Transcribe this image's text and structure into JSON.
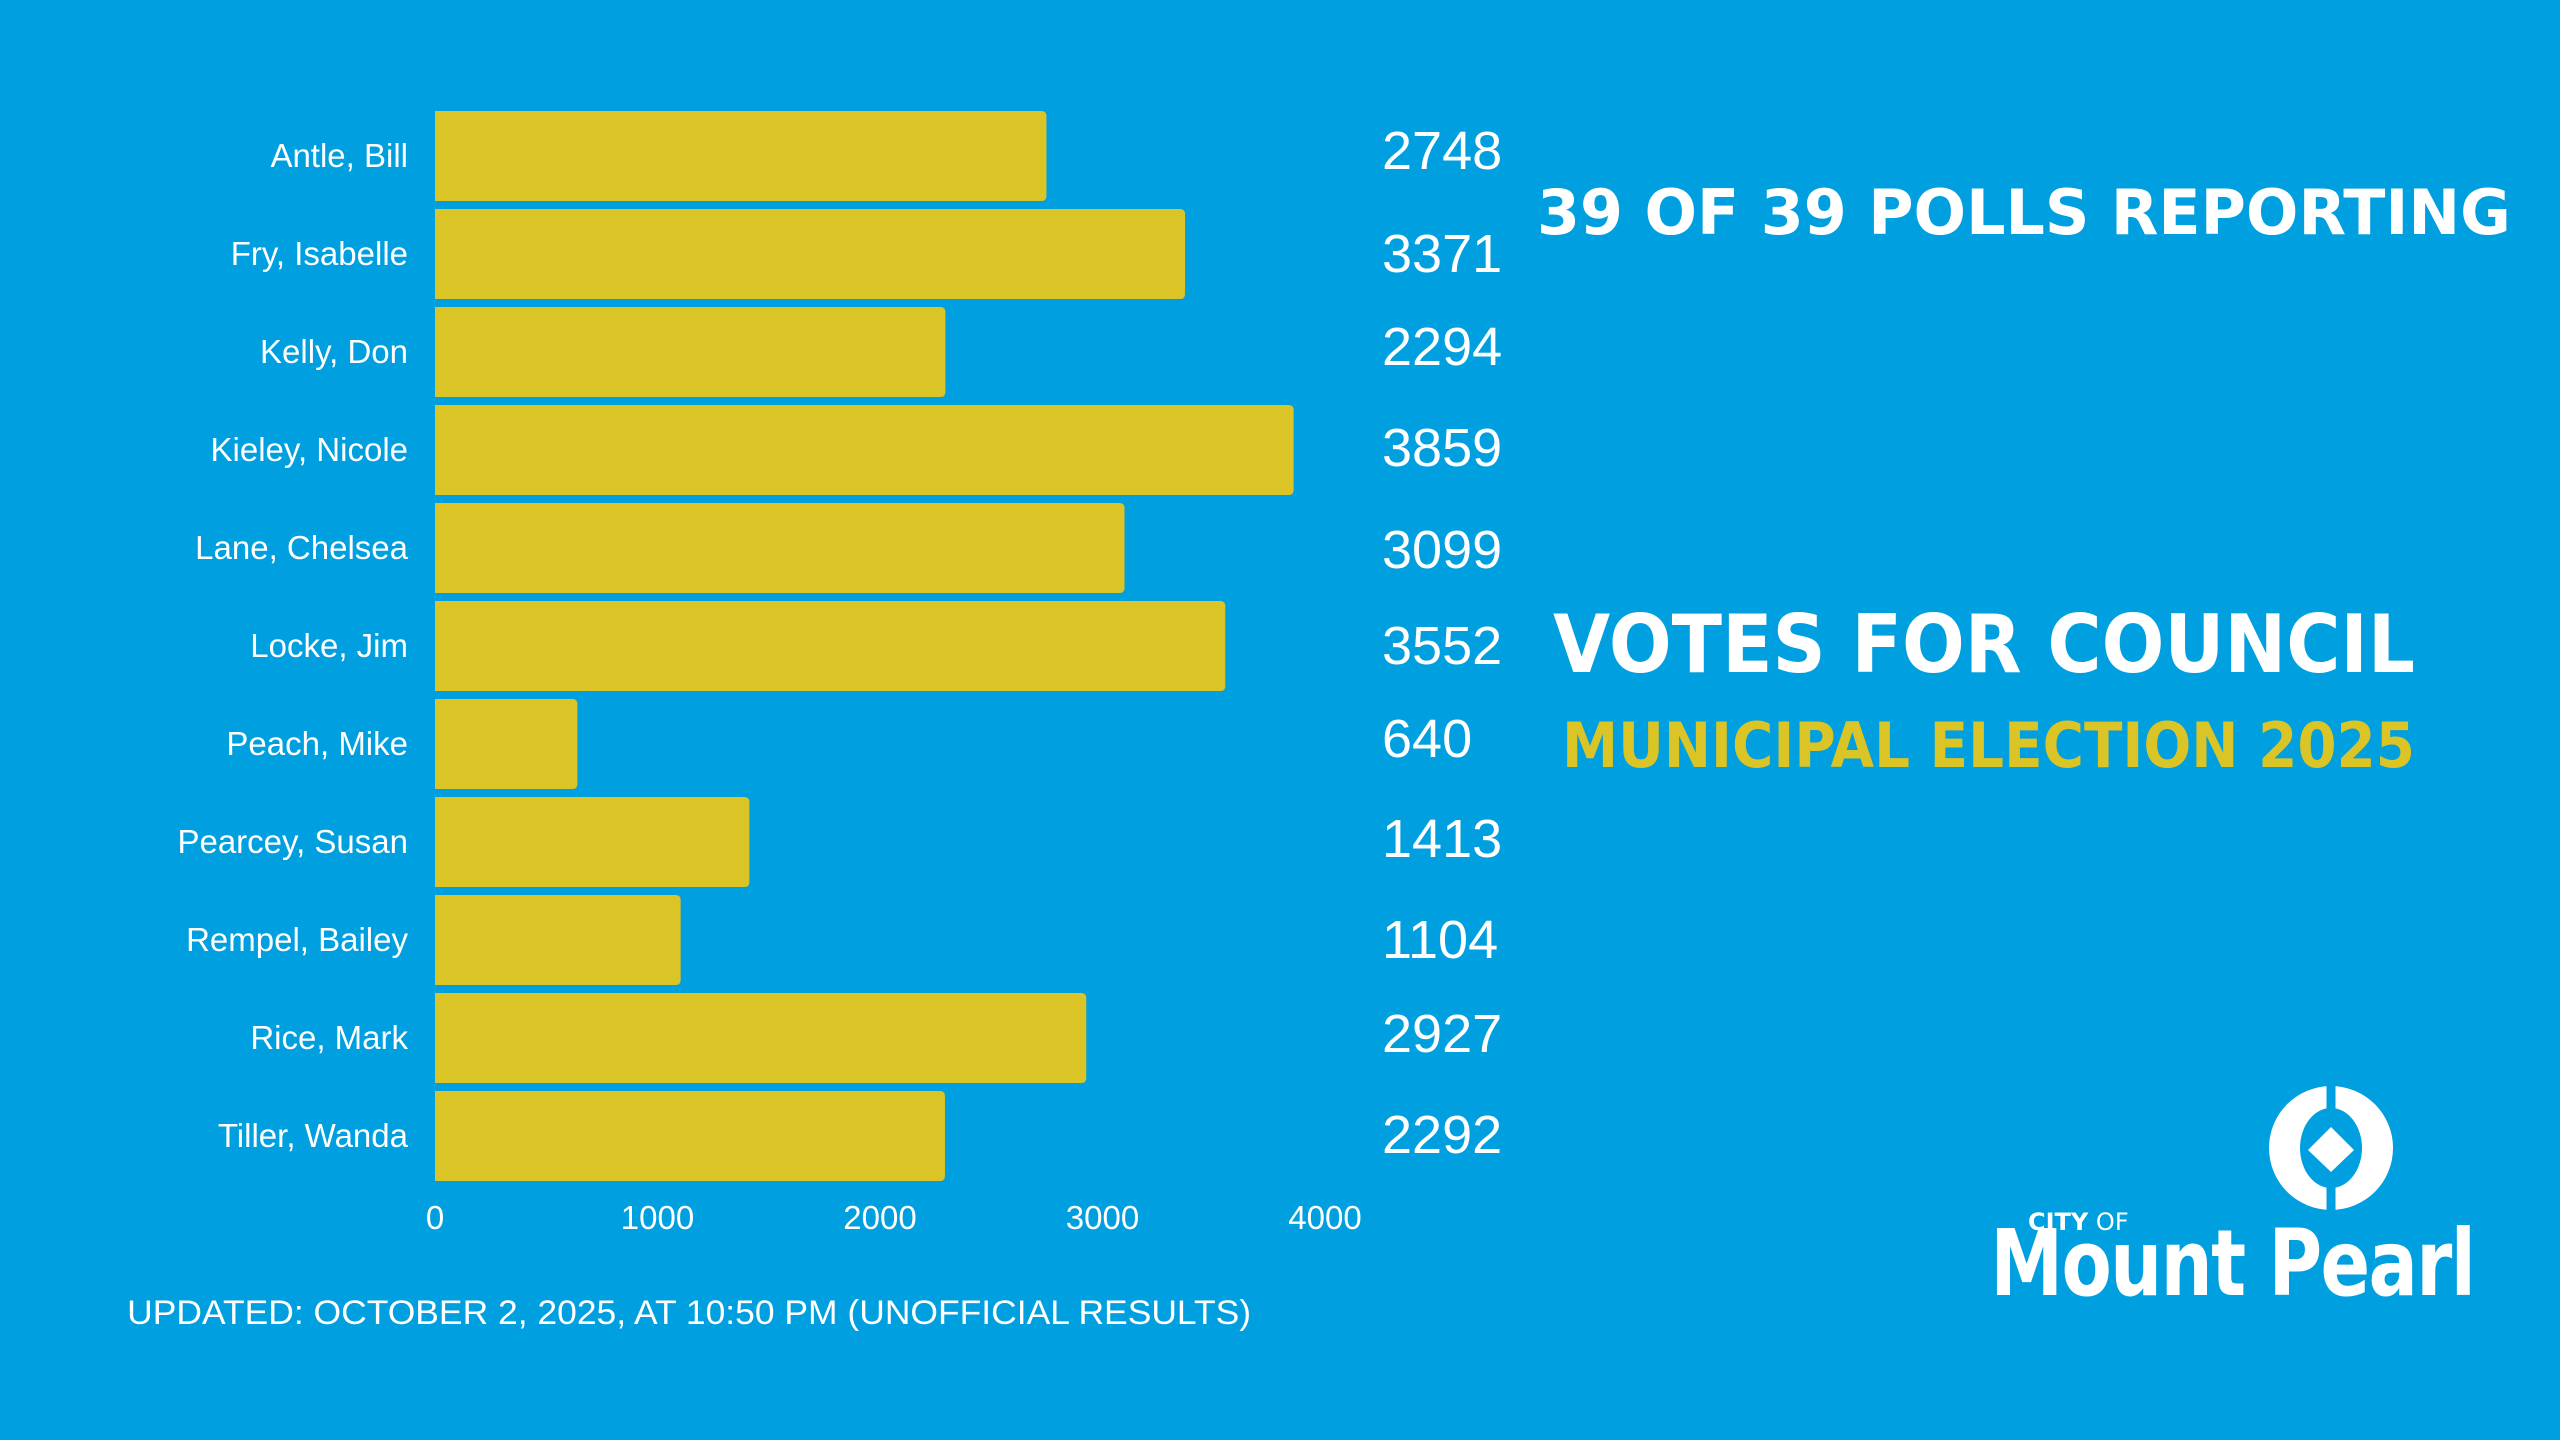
{
  "header": {
    "polls_reporting": "39 OF 39 POLLS REPORTING",
    "title": "VOTES FOR COUNCIL",
    "subtitle": "MUNICIPAL ELECTION 2025"
  },
  "footer": {
    "updated": "UPDATED: OCTOBER 2, 2025, AT 10:50 PM (UNOFFICIAL RESULTS)"
  },
  "logo": {
    "icon": "city-emblem-icon",
    "city_of_bold": "CITY",
    "city_of_light": " OF",
    "name": "Mount Pearl"
  },
  "colors": {
    "background": "#009FDF",
    "bar": "#DBC425",
    "text": "#FFFFFF",
    "accent": "#DBC425"
  },
  "chart_data": {
    "type": "bar",
    "orientation": "horizontal",
    "title": "VOTES FOR COUNCIL",
    "subtitle": "MUNICIPAL ELECTION 2025",
    "xlabel": "",
    "ylabel": "",
    "categories": [
      "Antle, Bill",
      "Fry, Isabelle",
      "Kelly, Don",
      "Kieley, Nicole",
      "Lane, Chelsea",
      "Locke, Jim",
      "Peach, Mike",
      "Pearcey, Susan",
      "Rempel, Bailey",
      "Rice, Mark",
      "Tiller, Wanda"
    ],
    "values": [
      2748,
      3371,
      2294,
      3859,
      3099,
      3552,
      640,
      1413,
      1104,
      2927,
      2292
    ],
    "xlim": [
      0,
      4000
    ],
    "xticks": [
      0,
      1000,
      2000,
      3000,
      4000
    ],
    "xtick_labels": [
      "0",
      "1000",
      "2000",
      "3000",
      "4000"
    ],
    "value_labels": [
      "2748",
      "3371",
      "2294",
      "3859",
      "3099",
      "3552",
      "640",
      "1413",
      "1104",
      "2927",
      "2292"
    ],
    "grid": false,
    "legend": "none"
  }
}
